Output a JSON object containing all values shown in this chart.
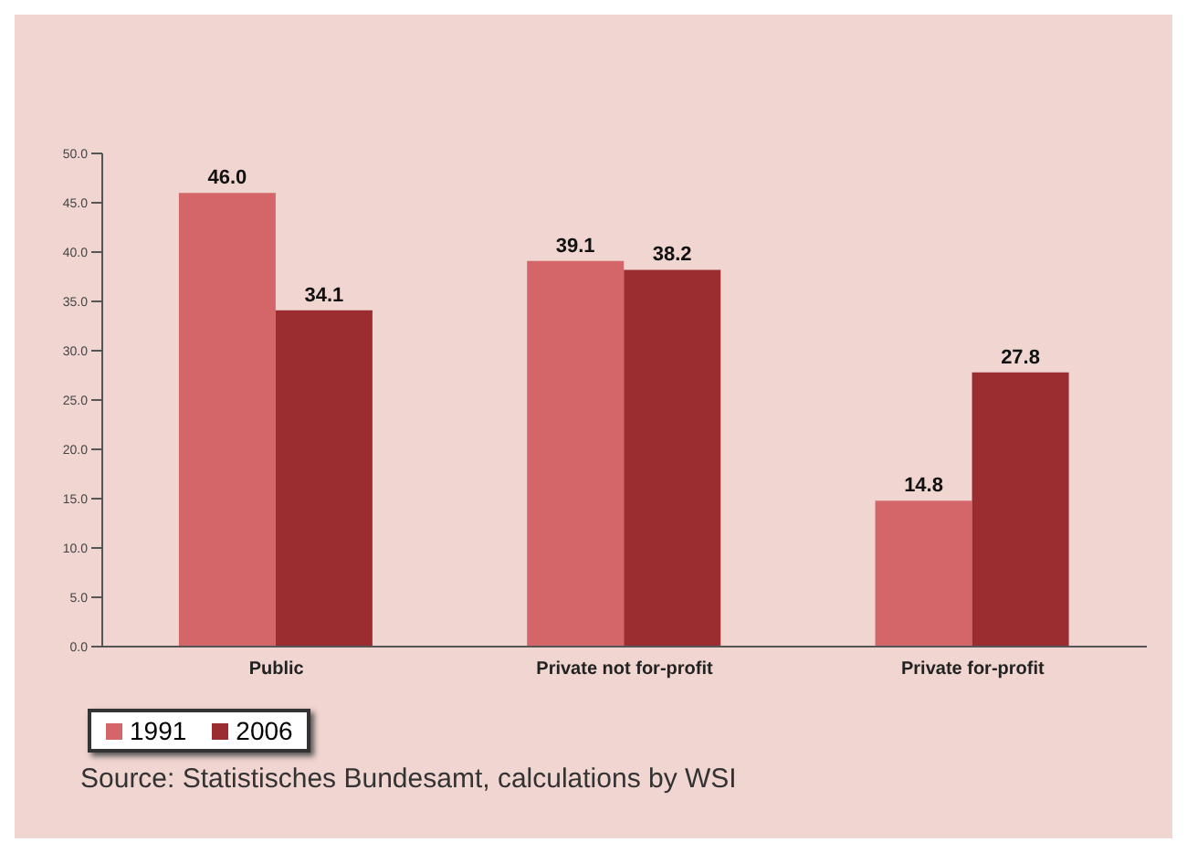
{
  "chart_data": {
    "type": "bar",
    "categories": [
      "Public",
      "Private not for-profit",
      "Private for-profit"
    ],
    "series": [
      {
        "name": "1991",
        "color": "#d4666a",
        "values": [
          46.0,
          39.1,
          14.8
        ],
        "value_labels": [
          "46.0",
          "39.1",
          "14.8"
        ]
      },
      {
        "name": "2006",
        "color": "#9b2d30",
        "values": [
          34.1,
          38.2,
          27.8
        ],
        "value_labels": [
          "34.1",
          "38.2",
          "27.8"
        ]
      }
    ],
    "ylim": [
      0,
      50
    ],
    "yticks": [
      {
        "value": 0,
        "label": "0.0"
      },
      {
        "value": 5,
        "label": "5.0"
      },
      {
        "value": 10,
        "label": "10.0"
      },
      {
        "value": 15,
        "label": "15.0"
      },
      {
        "value": 20,
        "label": "20.0"
      },
      {
        "value": 25,
        "label": "25.0"
      },
      {
        "value": 30,
        "label": "30.0"
      },
      {
        "value": 35,
        "label": "35.0"
      },
      {
        "value": 40,
        "label": "40.0"
      },
      {
        "value": 45,
        "label": "45.0"
      },
      {
        "value": 50,
        "label": "50.0"
      }
    ],
    "grid": false,
    "legend": "bottom left",
    "annotations": [
      "Source: Statistisches Bundesamt, calculations by WSI"
    ]
  }
}
